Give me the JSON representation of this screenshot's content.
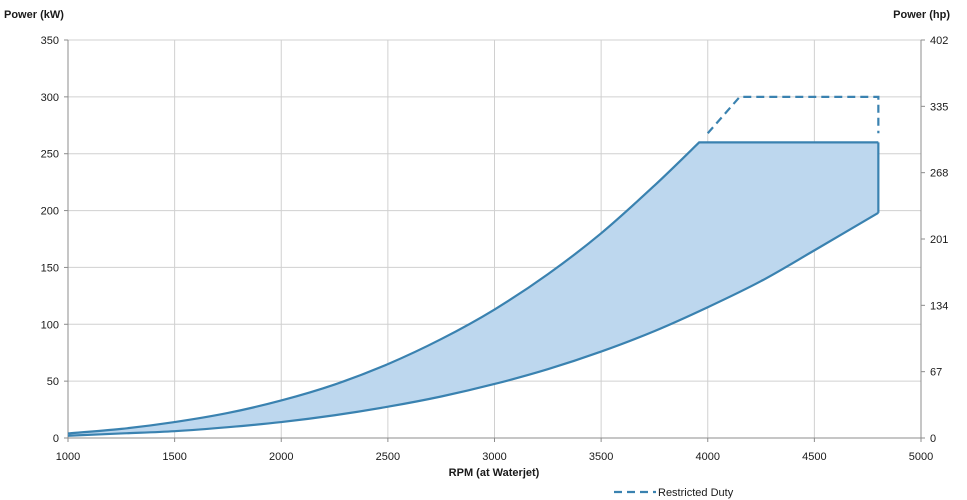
{
  "chart_data": {
    "type": "area",
    "xlabel": "RPM (at Waterjet)",
    "ylabel_left": "Power (kW)",
    "ylabel_right": "Power (hp)",
    "xlim": [
      1000,
      5000
    ],
    "ylim": [
      0,
      350
    ],
    "x_ticks": [
      "1000",
      "1500",
      "2000",
      "2500",
      "3000",
      "3500",
      "4000",
      "4500",
      "5000"
    ],
    "y_ticks_left": [
      "0",
      "50",
      "100",
      "150",
      "200",
      "250",
      "300",
      "350"
    ],
    "y_ticks_right": [
      "0",
      "67",
      "134",
      "201",
      "268",
      "335",
      "402"
    ],
    "grid": true,
    "legend_position": "bottom-right",
    "fill_color": "#bdd7ee",
    "line_color": "#3a82b0",
    "series": [
      {
        "role": "upper-boundary",
        "x": [
          1000,
          1250,
          1500,
          1750,
          2000,
          2250,
          2500,
          2750,
          3000,
          3250,
          3500,
          3750,
          3960,
          4800
        ],
        "values": [
          4,
          8,
          14,
          22,
          33,
          47,
          65,
          87,
          113,
          144,
          180,
          222,
          260,
          260
        ]
      },
      {
        "role": "lower-boundary",
        "x": [
          1000,
          1250,
          1500,
          1750,
          2000,
          2250,
          2500,
          2750,
          3000,
          3250,
          3500,
          3750,
          4000,
          4250,
          4500,
          4800
        ],
        "values": [
          2,
          4,
          6,
          9.5,
          14,
          20,
          27.5,
          36.5,
          47.5,
          60.5,
          76,
          94,
          115,
          138,
          165,
          198
        ]
      },
      {
        "name": "Restricted Duty",
        "style": "dashed",
        "x": [
          4000,
          4150,
          4800,
          4800
        ],
        "values": [
          268,
          300,
          300,
          268
        ]
      }
    ]
  }
}
